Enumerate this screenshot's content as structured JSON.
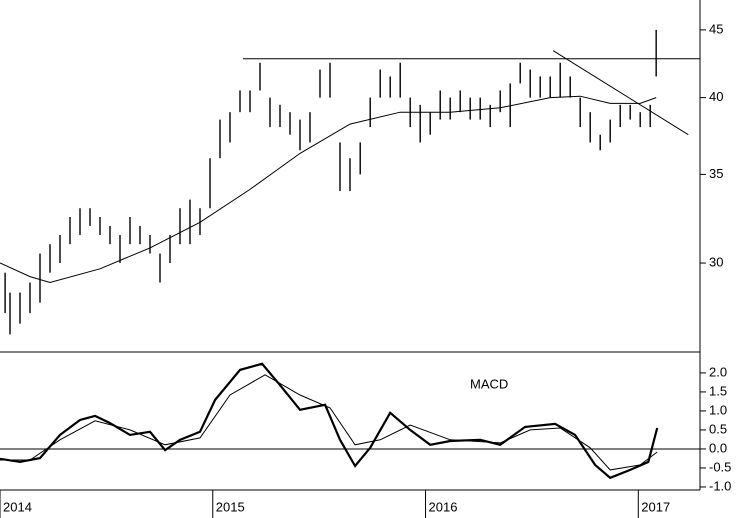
{
  "chart_data": [
    {
      "type": "hilo",
      "log_scale": true,
      "xlim": [
        2014,
        2017.29
      ],
      "ylim": [
        25.7,
        47.4
      ],
      "yticks": [
        30,
        35,
        40,
        45
      ],
      "color": "#000000",
      "x": [
        2014.024,
        2014.047,
        2014.094,
        2014.141,
        2014.188,
        2014.235,
        2014.282,
        2014.329,
        2014.376,
        2014.423,
        2014.47,
        2014.517,
        2014.564,
        2014.611,
        2014.658,
        2014.705,
        2014.752,
        2014.799,
        2014.846,
        2014.893,
        2014.94,
        2014.987,
        2015.034,
        2015.081,
        2015.128,
        2015.175,
        2015.222,
        2015.269,
        2015.316,
        2015.363,
        2015.41,
        2015.457,
        2015.504,
        2015.551,
        2015.598,
        2015.645,
        2015.693,
        2015.74,
        2015.787,
        2015.834,
        2015.881,
        2015.928,
        2015.975,
        2016.022,
        2016.069,
        2016.116,
        2016.163,
        2016.21,
        2016.257,
        2016.304,
        2016.351,
        2016.398,
        2016.445,
        2016.492,
        2016.539,
        2016.586,
        2016.633,
        2016.68,
        2016.727,
        2016.774,
        2016.821,
        2016.868,
        2016.915,
        2016.962,
        2017.009,
        2017.056,
        2017.084
      ],
      "high": [
        29.5,
        28.5,
        28.5,
        29,
        30.5,
        31,
        31.5,
        32.5,
        33,
        33,
        32.5,
        32,
        31.5,
        32.5,
        32,
        31.5,
        30.5,
        31.5,
        33,
        33.5,
        33,
        36,
        38.5,
        39,
        40.5,
        40.5,
        42.5,
        40,
        39.5,
        39,
        38.5,
        39,
        42,
        42.5,
        37,
        36,
        37,
        40,
        42,
        41.5,
        42.5,
        40,
        39.5,
        39,
        40.5,
        40,
        40.5,
        40,
        40,
        39.5,
        40.5,
        41,
        42.5,
        42,
        41.5,
        41.5,
        42.5,
        41.5,
        40,
        39,
        37.5,
        38.5,
        39.5,
        39.5,
        39,
        39.5,
        45
      ],
      "low": [
        27.5,
        26.5,
        27,
        27.5,
        28,
        29.5,
        30,
        31,
        31.5,
        32,
        31.5,
        31,
        30,
        31,
        31,
        30.5,
        29,
        30,
        31,
        31,
        31.5,
        33,
        36,
        37,
        39,
        39,
        40.5,
        38,
        38,
        37.5,
        36.5,
        37,
        40,
        40,
        34,
        34,
        35,
        38,
        40,
        40,
        40,
        38,
        37,
        37.5,
        38.5,
        38.5,
        39,
        38.5,
        38.5,
        38,
        39,
        38,
        41,
        40,
        40,
        40,
        40,
        40,
        38,
        37,
        36.5,
        37,
        38,
        38.5,
        38,
        38,
        41.5
      ],
      "ma_color": "#000000",
      "ma_x": [
        2014.0,
        2014.141,
        2014.235,
        2014.47,
        2014.705,
        2014.94,
        2015.175,
        2015.41,
        2015.645,
        2015.881,
        2016.116,
        2016.351,
        2016.586,
        2016.727,
        2016.868,
        2017.009,
        2017.084
      ],
      "ma_values": [
        30,
        29.3,
        29,
        29.7,
        30.8,
        32.2,
        34.1,
        36.3,
        38.2,
        39.0,
        39.0,
        39.3,
        40.0,
        40.1,
        39.6,
        39.6,
        40
      ],
      "lines": [
        {
          "x": [
            2015.142,
            2017.29
          ],
          "y": [
            42.8,
            42.8
          ]
        },
        {
          "x": [
            2016.6,
            2017.235
          ],
          "y": [
            43.4,
            37.5
          ]
        }
      ]
    },
    {
      "type": "line",
      "xlim": [
        2014,
        2017.29
      ],
      "ylim": [
        -1.08,
        2.55
      ],
      "yticks": [
        {
          "value": 2,
          "label": "2.0"
        },
        1.5,
        {
          "value": 1,
          "label": "1.0"
        },
        0.5,
        {
          "value": 0,
          "label": "0.0"
        },
        -0.5,
        {
          "value": -1,
          "label": "-1.0"
        }
      ],
      "xticks": [
        2014,
        2015,
        2016,
        2017
      ],
      "zero_line": true,
      "annotation": "MACD",
      "series": [
        {
          "color": "#000000",
          "width": 2.2,
          "x": [
            2014.0,
            2014.094,
            2014.188,
            2014.282,
            2014.376,
            2014.447,
            2014.517,
            2014.611,
            2014.705,
            2014.776,
            2014.846,
            2014.94,
            2015.011,
            2015.128,
            2015.232,
            2015.316,
            2015.41,
            2015.528,
            2015.598,
            2015.669,
            2015.74,
            2015.834,
            2015.928,
            2016.022,
            2016.116,
            2016.257,
            2016.351,
            2016.468,
            2016.609,
            2016.703,
            2016.797,
            2016.868,
            2016.962,
            2017.047,
            2017.089
          ],
          "values": [
            -0.26,
            -0.34,
            -0.24,
            0.37,
            0.76,
            0.87,
            0.68,
            0.37,
            0.45,
            -0.03,
            0.24,
            0.45,
            1.29,
            2.08,
            2.24,
            1.68,
            1.03,
            1.16,
            0.24,
            -0.45,
            0.03,
            0.95,
            0.5,
            0.11,
            0.21,
            0.24,
            0.11,
            0.58,
            0.66,
            0.37,
            -0.42,
            -0.76,
            -0.55,
            -0.34,
            0.55
          ]
        },
        {
          "color": "#000000",
          "width": 1,
          "x": [
            2014.0,
            2014.141,
            2014.282,
            2014.447,
            2014.611,
            2014.776,
            2014.94,
            2015.081,
            2015.246,
            2015.41,
            2015.551,
            2015.669,
            2015.787,
            2015.928,
            2016.116,
            2016.351,
            2016.492,
            2016.633,
            2016.774,
            2016.868,
            2017.009,
            2017.089
          ],
          "values": [
            -0.29,
            -0.29,
            0.24,
            0.74,
            0.5,
            0.11,
            0.29,
            1.42,
            1.95,
            1.42,
            1.08,
            0.11,
            0.24,
            0.63,
            0.24,
            0.16,
            0.5,
            0.55,
            0.03,
            -0.55,
            -0.42,
            -0.08
          ]
        }
      ]
    }
  ]
}
